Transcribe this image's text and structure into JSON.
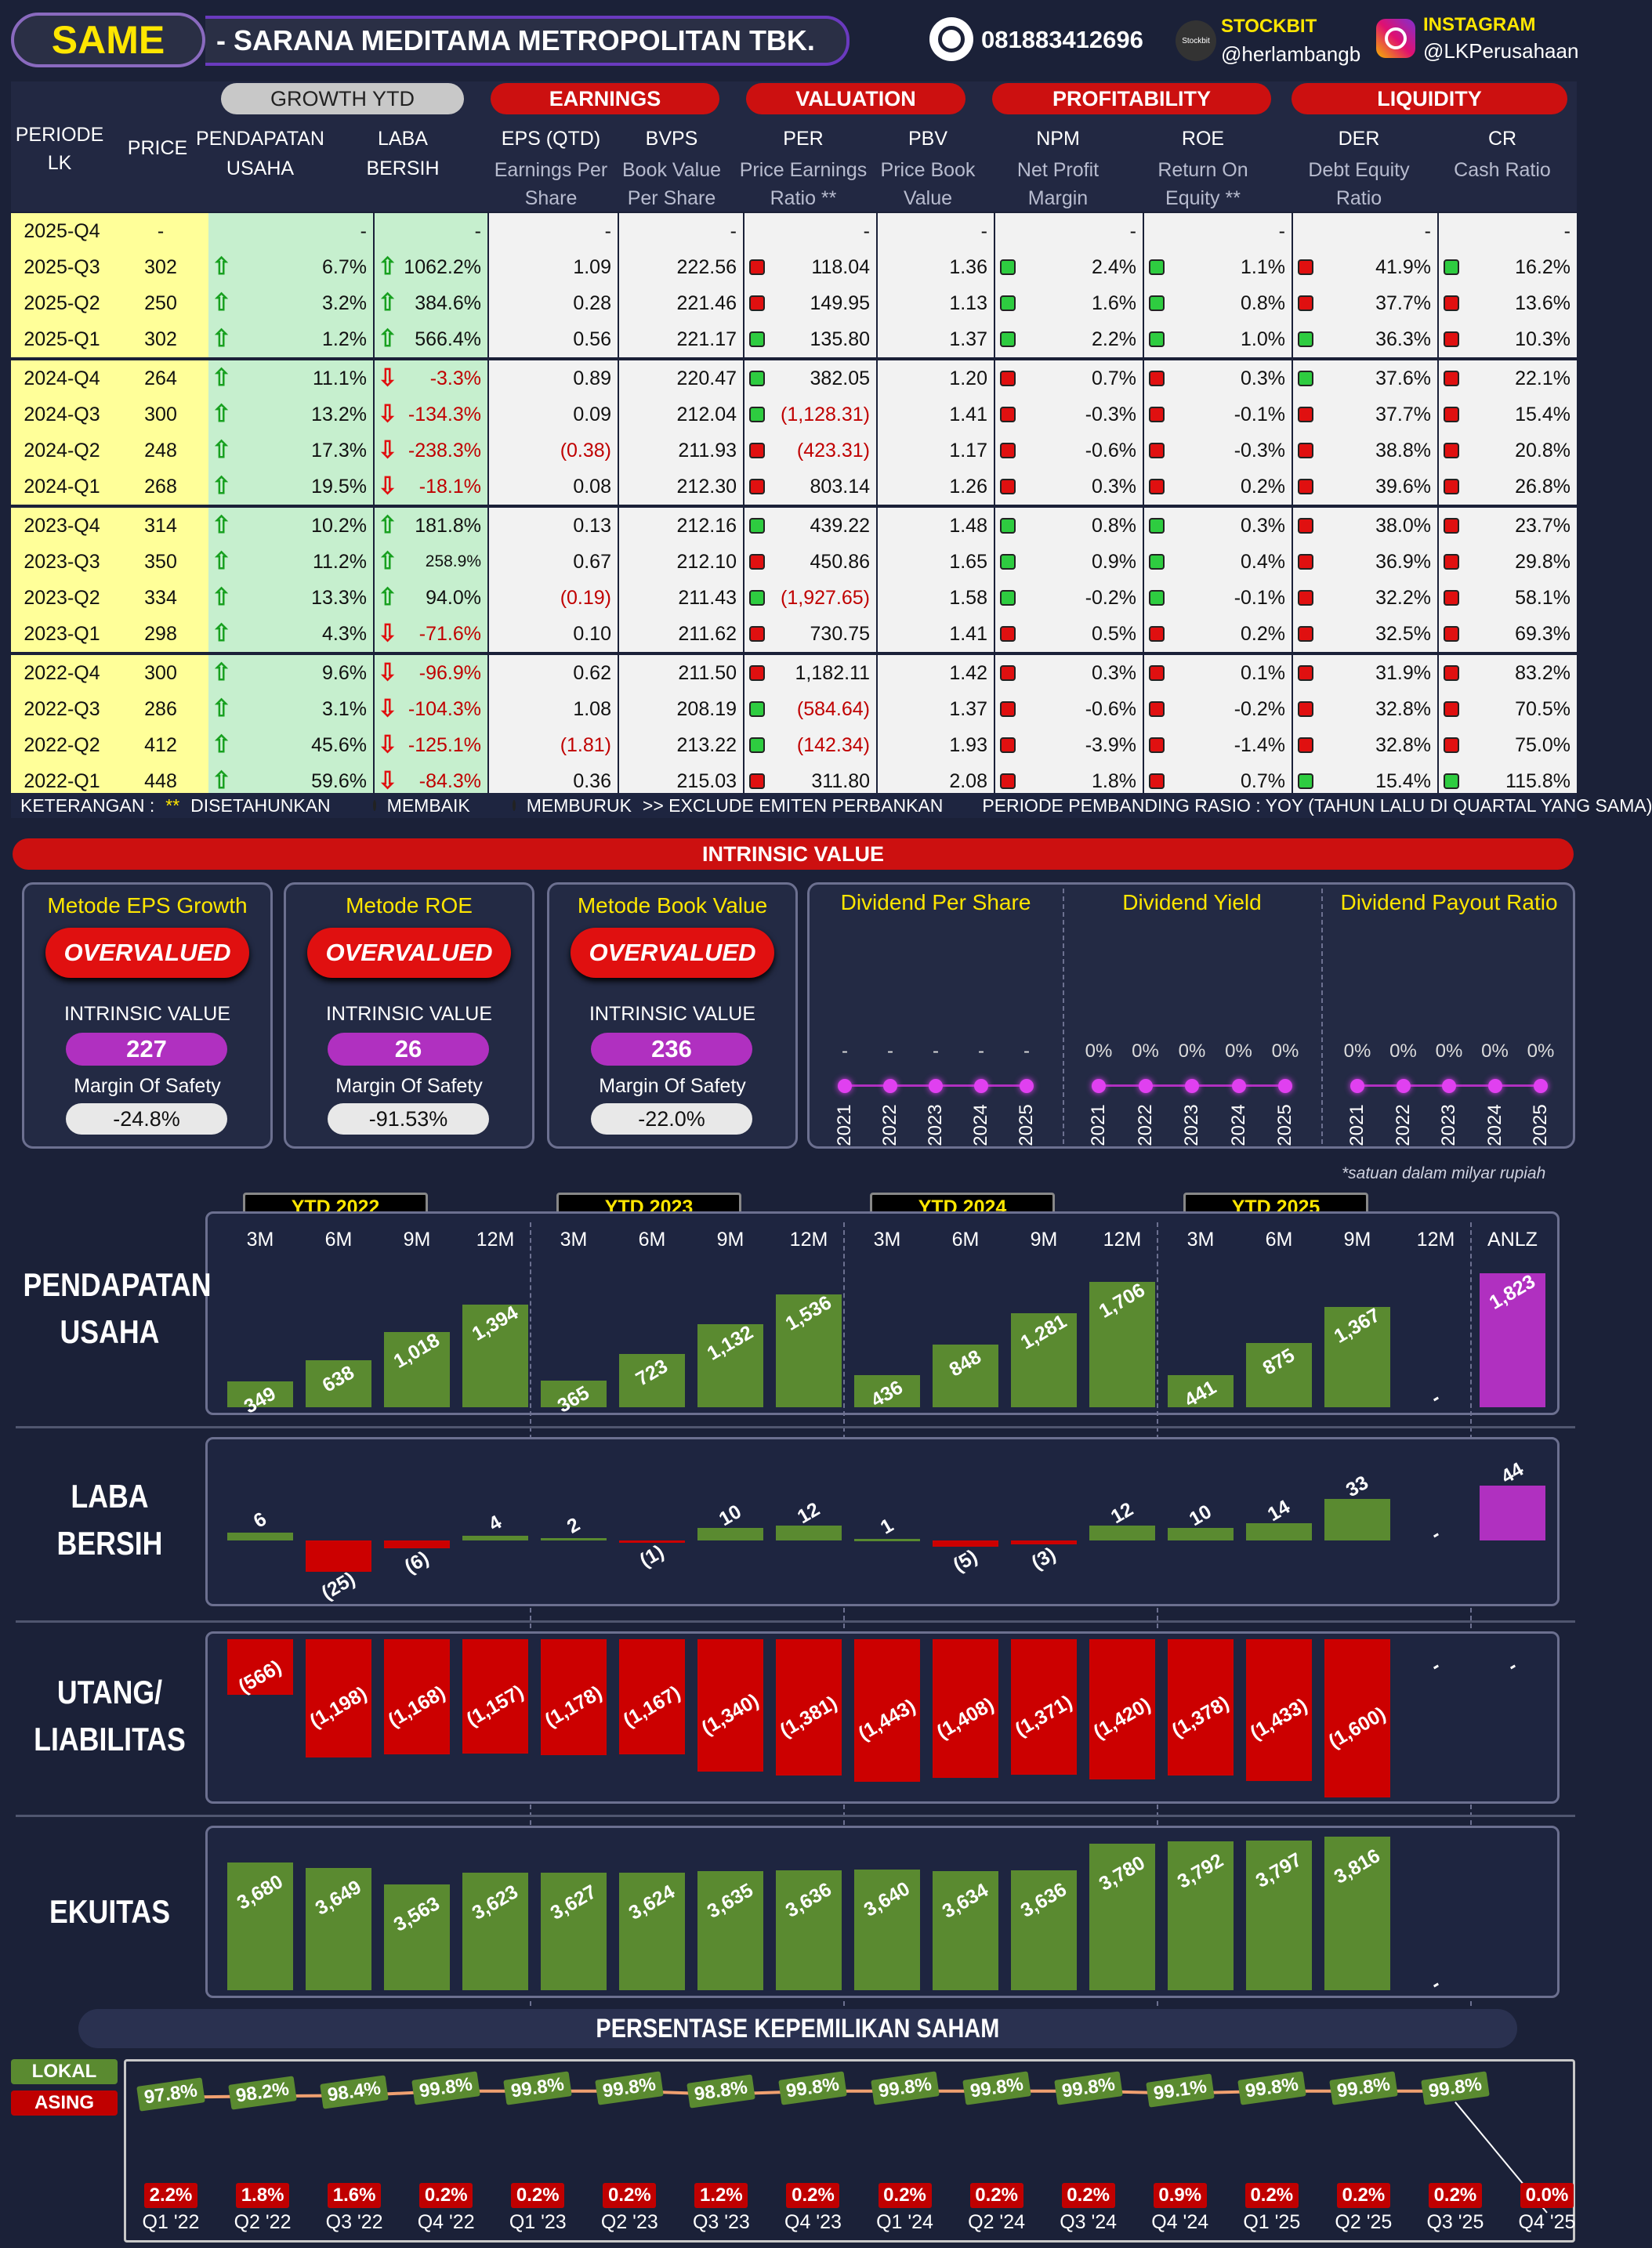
{
  "header": {
    "ticker": "SAME",
    "company": "- SARANA MEDITAMA METROPOLITAN TBK.",
    "phone": "081883412696",
    "stockbit_label": "STOCKBIT",
    "stockbit_handle": "@herlambangb",
    "instagram_label": "INSTAGRAM",
    "instagram_handle": "@LKPerusahaan",
    "whatsapp_icon": "whatsapp-icon",
    "instagram_icon": "instagram-icon"
  },
  "table": {
    "groups": {
      "growth": "GROWTH YTD",
      "earnings": "EARNINGS",
      "valuation": "VALUATION",
      "profitability": "PROFITABILITY",
      "liquidity": "LIQUIDITY"
    },
    "col_periode": "PERIODE LK",
    "col_price": "PRICE",
    "columns": [
      {
        "h": "PENDAPATAN",
        "s": "USAHA"
      },
      {
        "h": "LABA",
        "s": "BERSIH"
      },
      {
        "h": "EPS (QTD)",
        "s1": "Earnings Per",
        "s2": "Share"
      },
      {
        "h": "BVPS",
        "s1": "Book Value",
        "s2": "Per Share"
      },
      {
        "h": "PER",
        "s1": "Price Earnings",
        "s2": "Ratio **"
      },
      {
        "h": "PBV",
        "s1": "Price Book",
        "s2": "Value"
      },
      {
        "h": "NPM",
        "s1": "Net Profit",
        "s2": "Margin"
      },
      {
        "h": "ROE",
        "s1": "Return On",
        "s2": "Equity **"
      },
      {
        "h": "DER",
        "s1": "Debt Equity",
        "s2": "Ratio"
      },
      {
        "h": "CR",
        "s1": "Cash Ratio",
        "s2": ""
      }
    ],
    "rows": [
      {
        "p": "2025-Q4",
        "price": "-",
        "rev": "-",
        "revd": "",
        "ni": "-",
        "nid": "",
        "eps": "-",
        "bvps": "-",
        "per": "-",
        "perd": "",
        "pbv": "-",
        "npm": "-",
        "npmd": "",
        "roe": "-",
        "roed": "",
        "der": "-",
        "derd": "",
        "cr": "-",
        "crd": ""
      },
      {
        "p": "2025-Q3",
        "price": "302",
        "rev": "6.7%",
        "revd": "up",
        "ni": "1062.2%",
        "nid": "up",
        "eps": "1.09",
        "bvps": "222.56",
        "per": "118.04",
        "perd": "r",
        "pbv": "1.36",
        "npm": "2.4%",
        "npmd": "g",
        "roe": "1.1%",
        "roed": "g",
        "der": "41.9%",
        "derd": "r",
        "cr": "16.2%",
        "crd": "g"
      },
      {
        "p": "2025-Q2",
        "price": "250",
        "rev": "3.2%",
        "revd": "up",
        "ni": "384.6%",
        "nid": "up",
        "eps": "0.28",
        "bvps": "221.46",
        "per": "149.95",
        "perd": "r",
        "pbv": "1.13",
        "npm": "1.6%",
        "npmd": "g",
        "roe": "0.8%",
        "roed": "g",
        "der": "37.7%",
        "derd": "r",
        "cr": "13.6%",
        "crd": "r"
      },
      {
        "p": "2025-Q1",
        "price": "302",
        "rev": "1.2%",
        "revd": "up",
        "ni": "566.4%",
        "nid": "up",
        "eps": "0.56",
        "bvps": "221.17",
        "per": "135.80",
        "perd": "g",
        "pbv": "1.37",
        "npm": "2.2%",
        "npmd": "g",
        "roe": "1.0%",
        "roed": "g",
        "der": "36.3%",
        "derd": "g",
        "cr": "10.3%",
        "crd": "r"
      },
      {
        "p": "2024-Q4",
        "price": "264",
        "rev": "11.1%",
        "revd": "up",
        "ni": "-3.3%",
        "nid": "dn",
        "eps": "0.89",
        "bvps": "220.47",
        "per": "382.05",
        "perd": "g",
        "pbv": "1.20",
        "npm": "0.7%",
        "npmd": "r",
        "roe": "0.3%",
        "roed": "r",
        "der": "37.6%",
        "derd": "g",
        "cr": "22.1%",
        "crd": "r"
      },
      {
        "p": "2024-Q3",
        "price": "300",
        "rev": "13.2%",
        "revd": "up",
        "ni": "-134.3%",
        "nid": "dn",
        "eps": "0.09",
        "bvps": "212.04",
        "per": "(1,128.31)",
        "perd": "g",
        "pbv": "1.41",
        "npm": "-0.3%",
        "npmd": "r",
        "roe": "-0.1%",
        "roed": "r",
        "der": "37.7%",
        "derd": "r",
        "cr": "15.4%",
        "crd": "r"
      },
      {
        "p": "2024-Q2",
        "price": "248",
        "rev": "17.3%",
        "revd": "up",
        "ni": "-238.3%",
        "nid": "dn",
        "eps": "(0.38)",
        "bvps": "211.93",
        "per": "(423.31)",
        "perd": "r",
        "pbv": "1.17",
        "npm": "-0.6%",
        "npmd": "r",
        "roe": "-0.3%",
        "roed": "r",
        "der": "38.8%",
        "derd": "r",
        "cr": "20.8%",
        "crd": "r"
      },
      {
        "p": "2024-Q1",
        "price": "268",
        "rev": "19.5%",
        "revd": "up",
        "ni": "-18.1%",
        "nid": "dn",
        "eps": "0.08",
        "bvps": "212.30",
        "per": "803.14",
        "perd": "r",
        "pbv": "1.26",
        "npm": "0.3%",
        "npmd": "r",
        "roe": "0.2%",
        "roed": "r",
        "der": "39.6%",
        "derd": "r",
        "cr": "26.8%",
        "crd": "r"
      },
      {
        "p": "2023-Q4",
        "price": "314",
        "rev": "10.2%",
        "revd": "up",
        "ni": "181.8%",
        "nid": "up",
        "eps": "0.13",
        "bvps": "212.16",
        "per": "439.22",
        "perd": "g",
        "pbv": "1.48",
        "npm": "0.8%",
        "npmd": "g",
        "roe": "0.3%",
        "roed": "g",
        "der": "38.0%",
        "derd": "r",
        "cr": "23.7%",
        "crd": "r"
      },
      {
        "p": "2023-Q3",
        "price": "350",
        "rev": "11.2%",
        "revd": "up",
        "ni": "258.9%",
        "nid": "up",
        "eps": "0.67",
        "bvps": "212.10",
        "per": "450.86",
        "perd": "r",
        "pbv": "1.65",
        "npm": "0.9%",
        "npmd": "g",
        "roe": "0.4%",
        "roed": "g",
        "der": "36.9%",
        "derd": "r",
        "cr": "29.8%",
        "crd": "r"
      },
      {
        "p": "2023-Q2",
        "price": "334",
        "rev": "13.3%",
        "revd": "up",
        "ni": "94.0%",
        "nid": "up",
        "eps": "(0.19)",
        "bvps": "211.43",
        "per": "(1,927.65)",
        "perd": "g",
        "pbv": "1.58",
        "npm": "-0.2%",
        "npmd": "g",
        "roe": "-0.1%",
        "roed": "g",
        "der": "32.2%",
        "derd": "r",
        "cr": "58.1%",
        "crd": "r"
      },
      {
        "p": "2023-Q1",
        "price": "298",
        "rev": "4.3%",
        "revd": "up",
        "ni": "-71.6%",
        "nid": "dn",
        "eps": "0.10",
        "bvps": "211.62",
        "per": "730.75",
        "perd": "r",
        "pbv": "1.41",
        "npm": "0.5%",
        "npmd": "r",
        "roe": "0.2%",
        "roed": "r",
        "der": "32.5%",
        "derd": "r",
        "cr": "69.3%",
        "crd": "r"
      },
      {
        "p": "2022-Q4",
        "price": "300",
        "rev": "9.6%",
        "revd": "up",
        "ni": "-96.9%",
        "nid": "dn",
        "eps": "0.62",
        "bvps": "211.50",
        "per": "1,182.11",
        "perd": "r",
        "pbv": "1.42",
        "npm": "0.3%",
        "npmd": "r",
        "roe": "0.1%",
        "roed": "r",
        "der": "31.9%",
        "derd": "r",
        "cr": "83.2%",
        "crd": "r"
      },
      {
        "p": "2022-Q3",
        "price": "286",
        "rev": "3.1%",
        "revd": "up",
        "ni": "-104.3%",
        "nid": "dn",
        "eps": "1.08",
        "bvps": "208.19",
        "per": "(584.64)",
        "perd": "g",
        "pbv": "1.37",
        "npm": "-0.6%",
        "npmd": "r",
        "roe": "-0.2%",
        "roed": "r",
        "der": "32.8%",
        "derd": "r",
        "cr": "70.5%",
        "crd": "r"
      },
      {
        "p": "2022-Q2",
        "price": "412",
        "rev": "45.6%",
        "revd": "up",
        "ni": "-125.1%",
        "nid": "dn",
        "eps": "(1.81)",
        "bvps": "213.22",
        "per": "(142.34)",
        "perd": "g",
        "pbv": "1.93",
        "npm": "-3.9%",
        "npmd": "r",
        "roe": "-1.4%",
        "roed": "r",
        "der": "32.8%",
        "derd": "r",
        "cr": "75.0%",
        "crd": "r"
      },
      {
        "p": "2022-Q1",
        "price": "448",
        "rev": "59.6%",
        "revd": "up",
        "ni": "-84.3%",
        "nid": "dn",
        "eps": "0.36",
        "bvps": "215.03",
        "per": "311.80",
        "perd": "r",
        "pbv": "2.08",
        "npm": "1.8%",
        "npmd": "r",
        "roe": "0.7%",
        "roed": "r",
        "der": "15.4%",
        "derd": "g",
        "cr": "115.8%",
        "crd": "g"
      }
    ],
    "legend": {
      "ket": "KETERANGAN :",
      "star": "**",
      "star_txt": "DISETAHUNKAN",
      "better": "MEMBAIK",
      "worse": "MEMBURUK",
      "exclude": ">> EXCLUDE EMITEN PERBANKAN",
      "periode": "PERIODE PEMBANDING RASIO : YOY (TAHUN LALU DI QUARTAL YANG SAMA)"
    }
  },
  "intrinsic": {
    "title": "INTRINSIC VALUE",
    "methods": [
      {
        "name": "Metode EPS Growth",
        "status": "OVERVALUED",
        "iv_label": "INTRINSIC VALUE",
        "iv": "227",
        "mos_label": "Margin Of Safety",
        "mos": "-24.8%"
      },
      {
        "name": "Metode ROE",
        "status": "OVERVALUED",
        "iv_label": "INTRINSIC VALUE",
        "iv": "26",
        "mos_label": "Margin Of Safety",
        "mos": "-91.53%"
      },
      {
        "name": "Metode Book Value",
        "status": "OVERVALUED",
        "iv_label": "INTRINSIC VALUE",
        "iv": "236",
        "mos_label": "Margin Of Safety",
        "mos": "-22.0%"
      }
    ],
    "dividends": [
      {
        "title": "Dividend Per Share",
        "years": [
          "2021",
          "2022",
          "2023",
          "2024",
          "2025"
        ],
        "values": [
          "-",
          "-",
          "-",
          "-",
          "-"
        ]
      },
      {
        "title": "Dividend Yield",
        "years": [
          "2021",
          "2022",
          "2023",
          "2024",
          "2025"
        ],
        "values": [
          "0%",
          "0%",
          "0%",
          "0%",
          "0%"
        ]
      },
      {
        "title": "Dividend Payout Ratio",
        "years": [
          "2021",
          "2022",
          "2023",
          "2024",
          "2025"
        ],
        "values": [
          "0%",
          "0%",
          "0%",
          "0%",
          "0%"
        ]
      }
    ],
    "note": "*satuan dalam milyar rupiah"
  },
  "chart_data": [
    {
      "type": "bar",
      "title": "PENDAPATAN USAHA",
      "groups": [
        "YTD 2022",
        "YTD 2023",
        "YTD 2024",
        "YTD 2025"
      ],
      "categories": [
        "3M",
        "6M",
        "9M",
        "12M",
        "3M",
        "6M",
        "9M",
        "12M",
        "3M",
        "6M",
        "9M",
        "12M",
        "3M",
        "6M",
        "9M",
        "12M",
        "ANLZ"
      ],
      "values": [
        349,
        638,
        1018,
        1394,
        365,
        723,
        1132,
        1536,
        436,
        848,
        1281,
        1706,
        441,
        875,
        1367,
        null,
        1823
      ],
      "labels": [
        "349",
        "638",
        "1,018",
        "1,394",
        "365",
        "723",
        "1,132",
        "1,536",
        "436",
        "848",
        "1,281",
        "1,706",
        "441",
        "875",
        "1,367",
        "-",
        "1,823"
      ]
    },
    {
      "type": "bar",
      "title": "LABA BERSIH",
      "values": [
        6,
        -25,
        -6,
        4,
        2,
        -1,
        10,
        12,
        1,
        -5,
        -3,
        12,
        10,
        14,
        33,
        null,
        44
      ],
      "labels": [
        "6",
        "(25)",
        "(6)",
        "4",
        "2",
        "(1)",
        "10",
        "12",
        "1",
        "(5)",
        "(3)",
        "12",
        "10",
        "14",
        "33",
        "-",
        "44"
      ]
    },
    {
      "type": "bar",
      "title": "UTANG/ LIABILITAS",
      "values": [
        566,
        1198,
        1168,
        1157,
        1178,
        1167,
        1340,
        1381,
        1443,
        1408,
        1371,
        1420,
        1378,
        1433,
        1600,
        null,
        null
      ],
      "labels": [
        "(566)",
        "(1,198)",
        "(1,168)",
        "(1,157)",
        "(1,178)",
        "(1,167)",
        "(1,340)",
        "(1,381)",
        "(1,443)",
        "(1,408)",
        "(1,371)",
        "(1,420)",
        "(1,378)",
        "(1,433)",
        "(1,600)",
        "-",
        "-"
      ]
    },
    {
      "type": "bar",
      "title": "EKUITAS",
      "values": [
        3680,
        3649,
        3563,
        3623,
        3627,
        3624,
        3635,
        3636,
        3640,
        3634,
        3636,
        3780,
        3792,
        3797,
        3816,
        null,
        null
      ],
      "labels": [
        "3,680",
        "3,649",
        "3,563",
        "3,623",
        "3,627",
        "3,624",
        "3,635",
        "3,636",
        "3,640",
        "3,634",
        "3,636",
        "3,780",
        "3,792",
        "3,797",
        "3,816",
        "-",
        ""
      ]
    },
    {
      "type": "line",
      "title": "PERSENTASE KEPEMILIKAN SAHAM",
      "x": [
        "Q1 '22",
        "Q2 '22",
        "Q3 '22",
        "Q4 '22",
        "Q1 '23",
        "Q2 '23",
        "Q3 '23",
        "Q4 '23",
        "Q1 '24",
        "Q2 '24",
        "Q3 '24",
        "Q4 '24",
        "Q1 '25",
        "Q2 '25",
        "Q3 '25",
        "Q4 '25"
      ],
      "series": [
        {
          "name": "LOKAL",
          "values": [
            97.8,
            98.2,
            98.4,
            99.8,
            99.8,
            99.8,
            98.8,
            99.8,
            99.8,
            99.8,
            99.8,
            99.1,
            99.8,
            99.8,
            99.8,
            null
          ],
          "labels": [
            "97.8%",
            "98.2%",
            "98.4%",
            "99.8%",
            "99.8%",
            "99.8%",
            "98.8%",
            "99.8%",
            "99.8%",
            "99.8%",
            "99.8%",
            "99.1%",
            "99.8%",
            "99.8%",
            "99.8%",
            ""
          ]
        },
        {
          "name": "ASING",
          "values": [
            2.2,
            1.8,
            1.6,
            0.2,
            0.2,
            0.2,
            1.2,
            0.2,
            0.2,
            0.2,
            0.2,
            0.9,
            0.2,
            0.2,
            0.2,
            0.0
          ],
          "labels": [
            "2.2%",
            "1.8%",
            "1.6%",
            "0.2%",
            "0.2%",
            "0.2%",
            "1.2%",
            "0.2%",
            "0.2%",
            "0.2%",
            "0.2%",
            "0.9%",
            "0.2%",
            "0.2%",
            "0.2%",
            "0.0%"
          ]
        }
      ]
    }
  ],
  "colors": {
    "red": "#cc1010",
    "green_bar": "#5a8a30",
    "red_bar": "#cc0000",
    "purple_bar": "#b030c0",
    "yellow": "#ffe600"
  }
}
